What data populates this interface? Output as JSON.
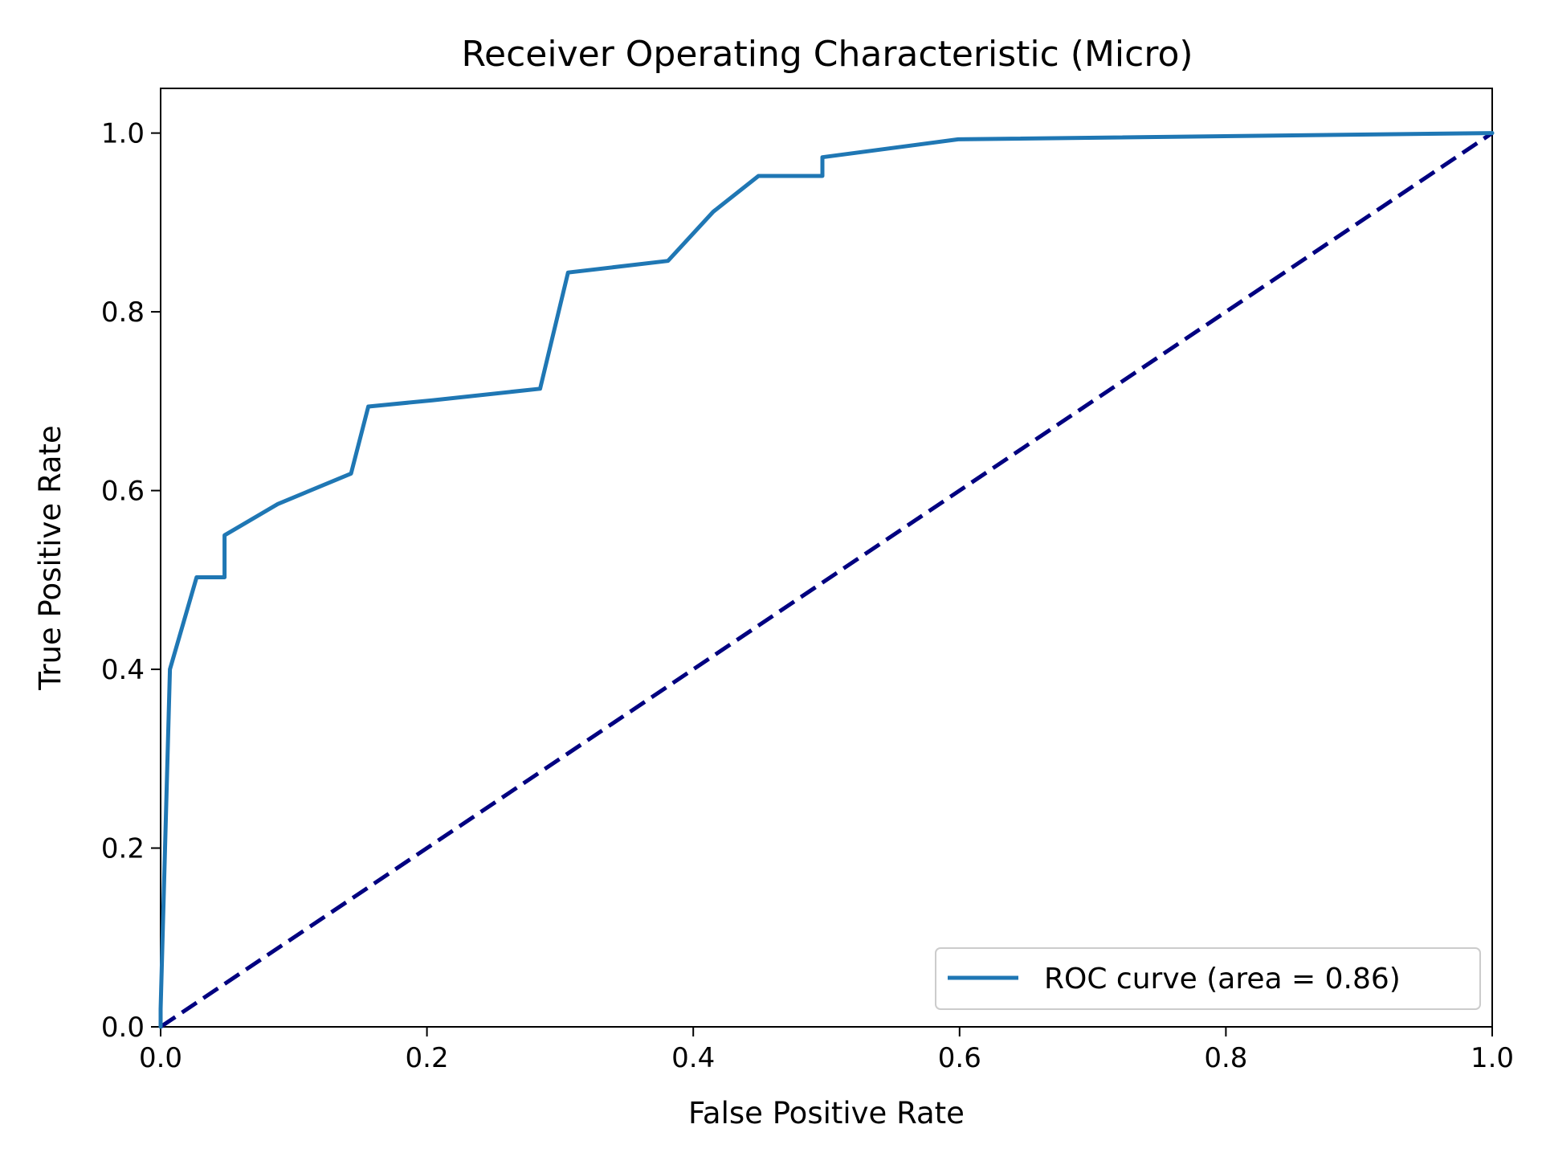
{
  "chart_data": {
    "type": "line",
    "title": "Receiver Operating Characteristic (Micro)",
    "xlabel": "False Positive Rate",
    "ylabel": "True Positive Rate",
    "xlim": [
      0.0,
      1.0
    ],
    "ylim": [
      0.0,
      1.05
    ],
    "xticks": [
      0.0,
      0.2,
      0.4,
      0.6,
      0.8,
      1.0
    ],
    "yticks": [
      0.0,
      0.2,
      0.4,
      0.6,
      0.8,
      1.0
    ],
    "xtick_labels": [
      "0.0",
      "0.2",
      "0.4",
      "0.6",
      "0.8",
      "1.0"
    ],
    "ytick_labels": [
      "0.0",
      "0.2",
      "0.4",
      "0.6",
      "0.8",
      "1.0"
    ],
    "grid": false,
    "legend": {
      "position": "lower-right",
      "entries": [
        "ROC curve (area = 0.86)"
      ]
    },
    "series": [
      {
        "name": "ROC curve (area = 0.86)",
        "color": "#1f77b4",
        "style": "solid",
        "x": [
          0.0,
          0.0,
          0.007,
          0.027,
          0.048,
          0.048,
          0.088,
          0.143,
          0.156,
          0.204,
          0.285,
          0.306,
          0.381,
          0.415,
          0.449,
          0.497,
          0.497,
          0.599,
          1.0
        ],
        "y": [
          0.0,
          0.02,
          0.4,
          0.503,
          0.503,
          0.55,
          0.585,
          0.619,
          0.694,
          0.701,
          0.714,
          0.844,
          0.857,
          0.912,
          0.952,
          0.952,
          0.973,
          0.993,
          1.0
        ]
      },
      {
        "color": "#000080",
        "style": "dashed",
        "x": [
          0.0,
          1.0
        ],
        "y": [
          0.0,
          1.0
        ]
      }
    ]
  }
}
